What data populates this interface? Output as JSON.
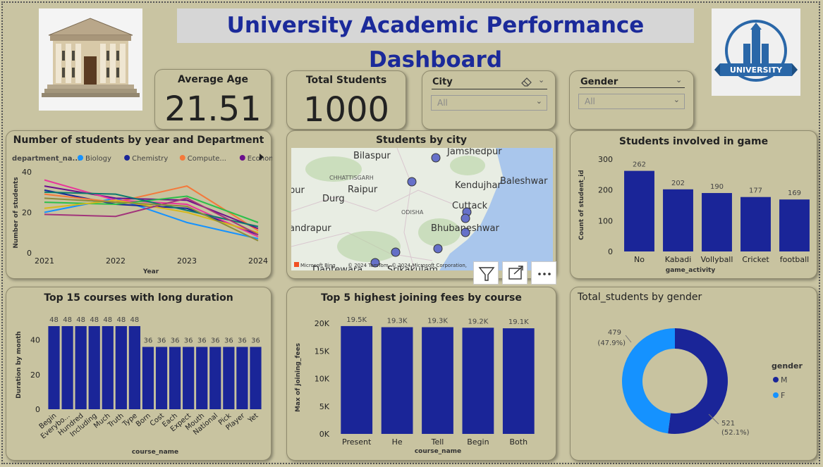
{
  "dashboard": {
    "title": "University Academic Performance Dashboard",
    "university_logo_text": "UNIVERSITY"
  },
  "kpis": {
    "average_age": {
      "label": "Average Age",
      "value": "21.51"
    },
    "total_students": {
      "label": "Total Students",
      "value": "1000"
    }
  },
  "slicers": {
    "city": {
      "label": "City",
      "value": "All"
    },
    "gender": {
      "label": "Gender",
      "value": "All"
    }
  },
  "map": {
    "title": "Students by city",
    "labels": [
      "Jamshedpur",
      "Bilaspur",
      "CHHATTISGARH",
      "Kendujhar",
      "Baleshwar",
      "Raipur",
      "Durg",
      "ODISHA",
      "Cuttack",
      "Bhubaneshwar",
      "andrapur",
      "Dantewara",
      "Srikakulam"
    ],
    "attribution": "© 2024 TomTom, © 2024 Microsoft Corporation,",
    "bing_label": "Microsoft Bing",
    "toolbar": [
      "filter-icon",
      "focus-mode-icon",
      "more-options-icon"
    ]
  },
  "colors": {
    "bar": "#1a2598",
    "donut_m": "#1a2598",
    "donut_f": "#1592ff",
    "title_blue": "#1b2a9a"
  },
  "chart_data": [
    {
      "id": "students_by_year_dept",
      "type": "line",
      "title": "Number of students by year and Department",
      "xlabel": "Year",
      "ylabel": "Number of students",
      "legend_title": "department_na...",
      "legend": [
        {
          "name": "Biology",
          "color": "#1592ff"
        },
        {
          "name": "Chemistry",
          "color": "#1a2598"
        },
        {
          "name": "Compute...",
          "color": "#f4793b"
        },
        {
          "name": "Economics",
          "color": "#6b0f8c"
        }
      ],
      "x": [
        "2021",
        "2022",
        "2023",
        "2024"
      ],
      "yticks": [
        "0",
        "20",
        "40"
      ],
      "ylim": [
        0,
        40
      ],
      "series": [
        {
          "color": "#1592ff",
          "values": [
            20,
            27,
            15,
            7
          ]
        },
        {
          "color": "#1a2598",
          "values": [
            31,
            24,
            22,
            9
          ]
        },
        {
          "color": "#f4793b",
          "values": [
            29,
            25,
            33,
            11
          ]
        },
        {
          "color": "#6b0f8c",
          "values": [
            33,
            27,
            26,
            12
          ]
        },
        {
          "color": "#e8359b",
          "values": [
            36,
            26,
            24,
            8
          ]
        },
        {
          "color": "#2dbf4a",
          "values": [
            25,
            24,
            28,
            15
          ]
        },
        {
          "color": "#0c7a6e",
          "values": [
            30,
            29,
            21,
            13
          ]
        },
        {
          "color": "#d7b81c",
          "values": [
            22,
            26,
            20,
            10
          ]
        },
        {
          "color": "#a2357b",
          "values": [
            19,
            18,
            27,
            9
          ]
        },
        {
          "color": "#8c8c3c",
          "values": [
            27,
            25,
            23,
            6
          ]
        }
      ]
    },
    {
      "id": "students_in_game",
      "type": "bar",
      "title": "Students involved in game",
      "xlabel": "game_activity",
      "ylabel": "Count of student_id",
      "categories": [
        "No",
        "Kabadi",
        "Vollyball",
        "Cricket",
        "football"
      ],
      "values": [
        262,
        202,
        190,
        177,
        169
      ],
      "data_labels": [
        "262",
        "202",
        "190",
        "177",
        "169"
      ],
      "yticks": [
        "0",
        "100",
        "200",
        "300"
      ],
      "ylim": [
        0,
        300
      ]
    },
    {
      "id": "top15_courses",
      "type": "bar",
      "title": "Top 15 courses with long duration",
      "xlabel": "course_name",
      "ylabel": "Duration by month",
      "categories": [
        "Begin",
        "Everybo...",
        "Hundred",
        "Including",
        "Much",
        "Truth",
        "Type",
        "Born",
        "Cost",
        "Each",
        "Expect",
        "Mouth",
        "National",
        "Pick",
        "Player",
        "Yet"
      ],
      "values": [
        48,
        48,
        48,
        48,
        48,
        48,
        48,
        36,
        36,
        36,
        36,
        36,
        36,
        36,
        36,
        36
      ],
      "data_labels": [
        "48",
        "48",
        "48",
        "48",
        "48",
        "48",
        "48",
        "36",
        "36",
        "36",
        "36",
        "36",
        "36",
        "36",
        "36",
        "36"
      ],
      "yticks": [
        "0",
        "20",
        "40"
      ],
      "ylim": [
        0,
        48
      ]
    },
    {
      "id": "top5_fees",
      "type": "bar",
      "title": "Top 5 highest joining fees by course",
      "xlabel": "course_name",
      "ylabel": "Max of joining_fees",
      "categories": [
        "Present",
        "He",
        "Tell",
        "Begin",
        "Both"
      ],
      "values": [
        19500,
        19300,
        19300,
        19200,
        19100
      ],
      "data_labels": [
        "19.5K",
        "19.3K",
        "19.3K",
        "19.2K",
        "19.1K"
      ],
      "yticks": [
        "0K",
        "5K",
        "10K",
        "15K",
        "20K"
      ],
      "ylim": [
        0,
        20000
      ]
    },
    {
      "id": "students_by_gender",
      "type": "pie",
      "title": "Total_students by gender",
      "legend_title": "gender",
      "slices": [
        {
          "label": "M",
          "value": 521,
          "count_label": "521",
          "pct_label": "(52.1%)",
          "color": "#1a2598"
        },
        {
          "label": "F",
          "value": 479,
          "count_label": "479",
          "pct_label": "(47.9%)",
          "color": "#1592ff"
        }
      ]
    }
  ]
}
